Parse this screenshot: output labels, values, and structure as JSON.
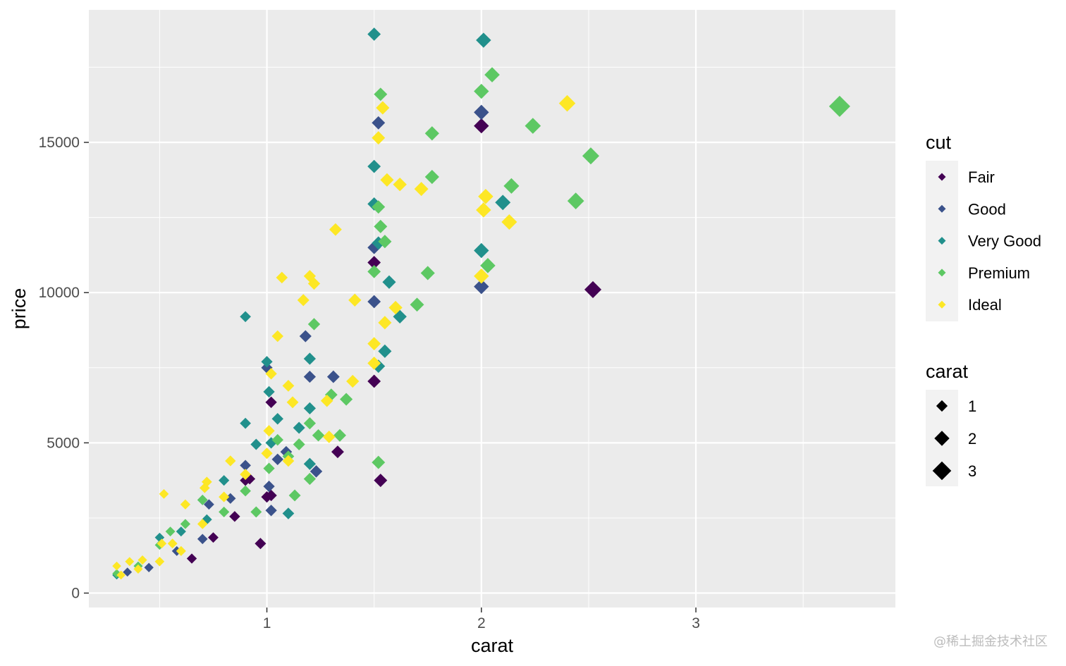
{
  "chart_data": {
    "type": "scatter",
    "xlabel": "carat",
    "ylabel": "price",
    "xlim": [
      0.17,
      3.93
    ],
    "ylim": [
      -480,
      19410
    ],
    "xticks": [
      1,
      2,
      3
    ],
    "xtick_labels": [
      "1",
      "2",
      "3"
    ],
    "yticks": [
      0,
      5000,
      10000,
      15000
    ],
    "ytick_labels": [
      "0",
      "5000",
      "10000",
      "15000"
    ],
    "grid": true,
    "marker": "diamond",
    "legend_position": "right",
    "color_legend": {
      "title": "cut",
      "entries": [
        {
          "label": "Fair",
          "color": "#440154"
        },
        {
          "label": "Good",
          "color": "#3b528b"
        },
        {
          "label": "Very Good",
          "color": "#21908c"
        },
        {
          "label": "Premium",
          "color": "#5dc863"
        },
        {
          "label": "Ideal",
          "color": "#fde725"
        }
      ]
    },
    "size_legend": {
      "title": "carat",
      "entries": [
        {
          "label": "1",
          "value": 1
        },
        {
          "label": "2",
          "value": 2
        },
        {
          "label": "3",
          "value": 3
        }
      ]
    },
    "series": [
      {
        "name": "Fair",
        "color": "#440154",
        "points": [
          [
            0.65,
            1150
          ],
          [
            0.75,
            1850
          ],
          [
            0.85,
            2550
          ],
          [
            0.9,
            3750
          ],
          [
            0.97,
            1650
          ],
          [
            1.0,
            3200
          ],
          [
            1.02,
            3250
          ],
          [
            1.02,
            6350
          ],
          [
            1.33,
            4700
          ],
          [
            1.5,
            7050
          ],
          [
            1.53,
            3750
          ],
          [
            2.0,
            15550
          ],
          [
            2.52,
            10100
          ],
          [
            1.5,
            11000
          ],
          [
            0.92,
            3800
          ]
        ]
      },
      {
        "name": "Good",
        "color": "#3b528b",
        "points": [
          [
            0.35,
            700
          ],
          [
            0.45,
            850
          ],
          [
            0.58,
            1400
          ],
          [
            0.7,
            1800
          ],
          [
            0.73,
            2950
          ],
          [
            0.83,
            3150
          ],
          [
            0.9,
            4250
          ],
          [
            1.0,
            7500
          ],
          [
            1.01,
            3550
          ],
          [
            1.02,
            2750
          ],
          [
            1.05,
            4450
          ],
          [
            1.09,
            4700
          ],
          [
            1.2,
            7200
          ],
          [
            1.23,
            4050
          ],
          [
            1.31,
            7200
          ],
          [
            1.5,
            9700
          ],
          [
            1.5,
            11500
          ],
          [
            1.52,
            15650
          ],
          [
            2.0,
            16000
          ],
          [
            2.0,
            10200
          ],
          [
            1.18,
            8550
          ]
        ]
      },
      {
        "name": "Very Good",
        "color": "#21908c",
        "points": [
          [
            0.3,
            600
          ],
          [
            0.5,
            1850
          ],
          [
            0.6,
            2050
          ],
          [
            0.7,
            3100
          ],
          [
            0.72,
            2450
          ],
          [
            0.8,
            3750
          ],
          [
            0.9,
            5650
          ],
          [
            0.9,
            9200
          ],
          [
            1.0,
            7700
          ],
          [
            1.01,
            6700
          ],
          [
            1.02,
            5000
          ],
          [
            1.05,
            5800
          ],
          [
            1.1,
            2650
          ],
          [
            1.15,
            5500
          ],
          [
            1.2,
            6150
          ],
          [
            1.2,
            7800
          ],
          [
            1.2,
            4300
          ],
          [
            1.5,
            18600
          ],
          [
            1.5,
            14200
          ],
          [
            1.5,
            12950
          ],
          [
            1.52,
            11650
          ],
          [
            1.52,
            7550
          ],
          [
            1.55,
            8050
          ],
          [
            1.57,
            10350
          ],
          [
            1.62,
            9200
          ],
          [
            2.01,
            18400
          ],
          [
            2.0,
            11400
          ],
          [
            2.1,
            13000
          ],
          [
            0.95,
            4950
          ]
        ]
      },
      {
        "name": "Premium",
        "color": "#5dc863",
        "points": [
          [
            0.3,
            650
          ],
          [
            0.4,
            900
          ],
          [
            0.5,
            1600
          ],
          [
            0.55,
            2050
          ],
          [
            0.62,
            2300
          ],
          [
            0.7,
            3100
          ],
          [
            0.8,
            2700
          ],
          [
            0.9,
            3400
          ],
          [
            0.95,
            2700
          ],
          [
            1.01,
            4150
          ],
          [
            1.05,
            5100
          ],
          [
            1.1,
            4550
          ],
          [
            1.15,
            4950
          ],
          [
            1.2,
            3800
          ],
          [
            1.2,
            5650
          ],
          [
            1.22,
            8950
          ],
          [
            1.24,
            5250
          ],
          [
            1.3,
            6600
          ],
          [
            1.34,
            5250
          ],
          [
            1.37,
            6450
          ],
          [
            1.5,
            10700
          ],
          [
            1.52,
            4350
          ],
          [
            1.52,
            12850
          ],
          [
            1.53,
            12200
          ],
          [
            1.53,
            16600
          ],
          [
            1.55,
            11700
          ],
          [
            1.7,
            9600
          ],
          [
            1.75,
            10650
          ],
          [
            1.77,
            13850
          ],
          [
            1.77,
            15300
          ],
          [
            2.0,
            16700
          ],
          [
            2.03,
            10900
          ],
          [
            2.05,
            17250
          ],
          [
            2.14,
            13550
          ],
          [
            2.24,
            15550
          ],
          [
            2.44,
            13050
          ],
          [
            2.51,
            14550
          ],
          [
            3.67,
            16200
          ],
          [
            1.13,
            3250
          ]
        ]
      },
      {
        "name": "Ideal",
        "color": "#fde725",
        "points": [
          [
            0.3,
            900
          ],
          [
            0.32,
            600
          ],
          [
            0.36,
            1050
          ],
          [
            0.4,
            800
          ],
          [
            0.42,
            1100
          ],
          [
            0.5,
            1050
          ],
          [
            0.51,
            1650
          ],
          [
            0.52,
            3300
          ],
          [
            0.56,
            1650
          ],
          [
            0.6,
            1400
          ],
          [
            0.62,
            2950
          ],
          [
            0.7,
            2300
          ],
          [
            0.71,
            3500
          ],
          [
            0.72,
            3700
          ],
          [
            0.8,
            3200
          ],
          [
            0.83,
            4400
          ],
          [
            0.9,
            3950
          ],
          [
            1.0,
            4650
          ],
          [
            1.01,
            5400
          ],
          [
            1.02,
            7300
          ],
          [
            1.05,
            8550
          ],
          [
            1.07,
            10500
          ],
          [
            1.1,
            4400
          ],
          [
            1.1,
            6900
          ],
          [
            1.12,
            6350
          ],
          [
            1.17,
            9750
          ],
          [
            1.2,
            10550
          ],
          [
            1.22,
            10300
          ],
          [
            1.28,
            6400
          ],
          [
            1.29,
            5200
          ],
          [
            1.32,
            12100
          ],
          [
            1.4,
            7050
          ],
          [
            1.41,
            9750
          ],
          [
            1.5,
            7650
          ],
          [
            1.5,
            8300
          ],
          [
            1.52,
            15150
          ],
          [
            1.54,
            16150
          ],
          [
            1.55,
            9000
          ],
          [
            1.56,
            13750
          ],
          [
            1.6,
            9500
          ],
          [
            1.62,
            13600
          ],
          [
            1.72,
            13450
          ],
          [
            2.0,
            10550
          ],
          [
            2.01,
            12750
          ],
          [
            2.02,
            13200
          ],
          [
            2.13,
            12350
          ],
          [
            2.4,
            16300
          ]
        ]
      }
    ]
  },
  "watermark": "@稀土掘金技术社区"
}
